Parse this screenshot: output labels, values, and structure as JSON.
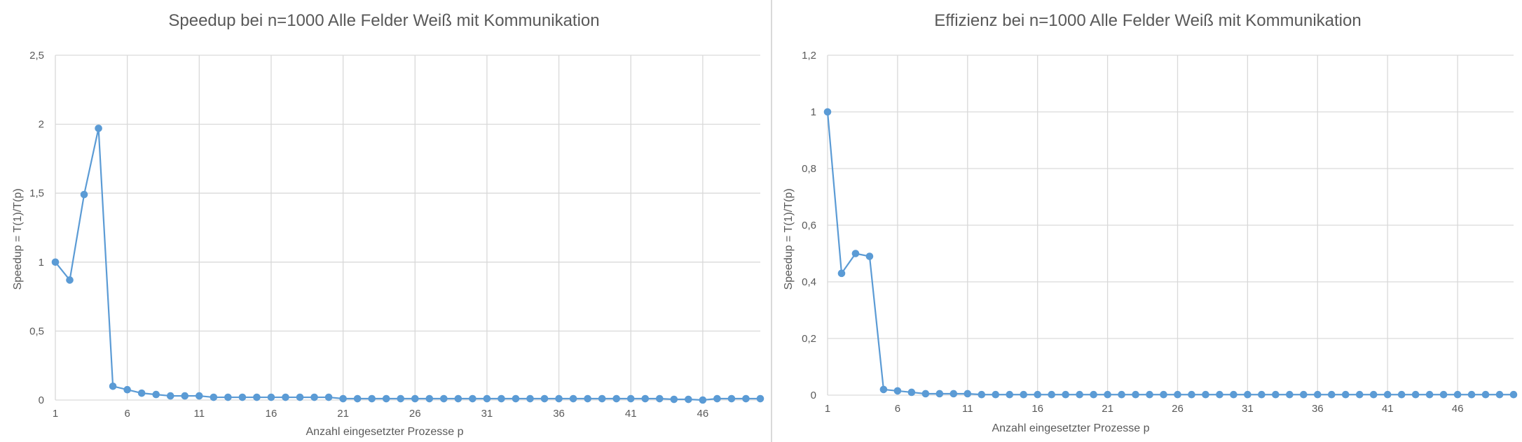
{
  "chart_data": [
    {
      "type": "line",
      "title": "Speedup bei n=1000 Alle Felder Weiß mit Kommunikation",
      "xlabel": "Anzahl eingesetzter Prozesse p",
      "ylabel": "Speedup = T(1)/T(p)",
      "ylim": [
        0,
        2.5
      ],
      "yticks": [
        "0",
        "0,5",
        "1",
        "1,5",
        "2",
        "2,5"
      ],
      "xticks": [
        "1",
        "6",
        "11",
        "16",
        "21",
        "26",
        "31",
        "36",
        "41",
        "46"
      ],
      "grid": true,
      "x": [
        1,
        2,
        3,
        4,
        5,
        6,
        7,
        8,
        9,
        10,
        11,
        12,
        13,
        14,
        15,
        16,
        17,
        18,
        19,
        20,
        21,
        22,
        23,
        24,
        25,
        26,
        27,
        28,
        29,
        30,
        31,
        32,
        33,
        34,
        35,
        36,
        37,
        38,
        39,
        40,
        41,
        42,
        43,
        44,
        45,
        46,
        47,
        48,
        49,
        50
      ],
      "series": [
        {
          "values": [
            1.0,
            0.87,
            1.49,
            1.97,
            0.1,
            0.075,
            0.05,
            0.04,
            0.03,
            0.03,
            0.03,
            0.02,
            0.02,
            0.02,
            0.02,
            0.02,
            0.02,
            0.02,
            0.02,
            0.02,
            0.01,
            0.01,
            0.01,
            0.01,
            0.01,
            0.01,
            0.01,
            0.01,
            0.01,
            0.01,
            0.01,
            0.01,
            0.01,
            0.01,
            0.01,
            0.01,
            0.01,
            0.01,
            0.01,
            0.01,
            0.01,
            0.01,
            0.01,
            0.005,
            0.005,
            0.0,
            0.01,
            0.01,
            0.01,
            0.01
          ]
        }
      ],
      "color": "#5b9bd5"
    },
    {
      "type": "line",
      "title": "Effizienz bei n=1000 Alle Felder Weiß mit Kommunikation",
      "xlabel": "Anzahl eingesetzter Prozesse p",
      "ylabel": "Speedup = T(1)/T(p)",
      "ylim": [
        0,
        1.2
      ],
      "yticks": [
        "0",
        "0,2",
        "0,4",
        "0,6",
        "0,8",
        "1",
        "1,2"
      ],
      "xticks": [
        "1",
        "6",
        "11",
        "16",
        "21",
        "26",
        "31",
        "36",
        "41",
        "46"
      ],
      "grid": true,
      "x": [
        1,
        2,
        3,
        4,
        5,
        6,
        7,
        8,
        9,
        10,
        11,
        12,
        13,
        14,
        15,
        16,
        17,
        18,
        19,
        20,
        21,
        22,
        23,
        24,
        25,
        26,
        27,
        28,
        29,
        30,
        31,
        32,
        33,
        34,
        35,
        36,
        37,
        38,
        39,
        40,
        41,
        42,
        43,
        44,
        45,
        46,
        47,
        48,
        49,
        50
      ],
      "series": [
        {
          "values": [
            1.0,
            0.43,
            0.5,
            0.49,
            0.02,
            0.015,
            0.01,
            0.005,
            0.005,
            0.005,
            0.005,
            0.002,
            0.002,
            0.002,
            0.002,
            0.002,
            0.002,
            0.002,
            0.002,
            0.002,
            0.002,
            0.002,
            0.002,
            0.002,
            0.002,
            0.002,
            0.002,
            0.002,
            0.002,
            0.002,
            0.002,
            0.002,
            0.002,
            0.002,
            0.002,
            0.002,
            0.002,
            0.002,
            0.002,
            0.002,
            0.002,
            0.002,
            0.002,
            0.002,
            0.002,
            0.002,
            0.002,
            0.002,
            0.002,
            0.002
          ]
        }
      ],
      "color": "#5b9bd5"
    }
  ]
}
